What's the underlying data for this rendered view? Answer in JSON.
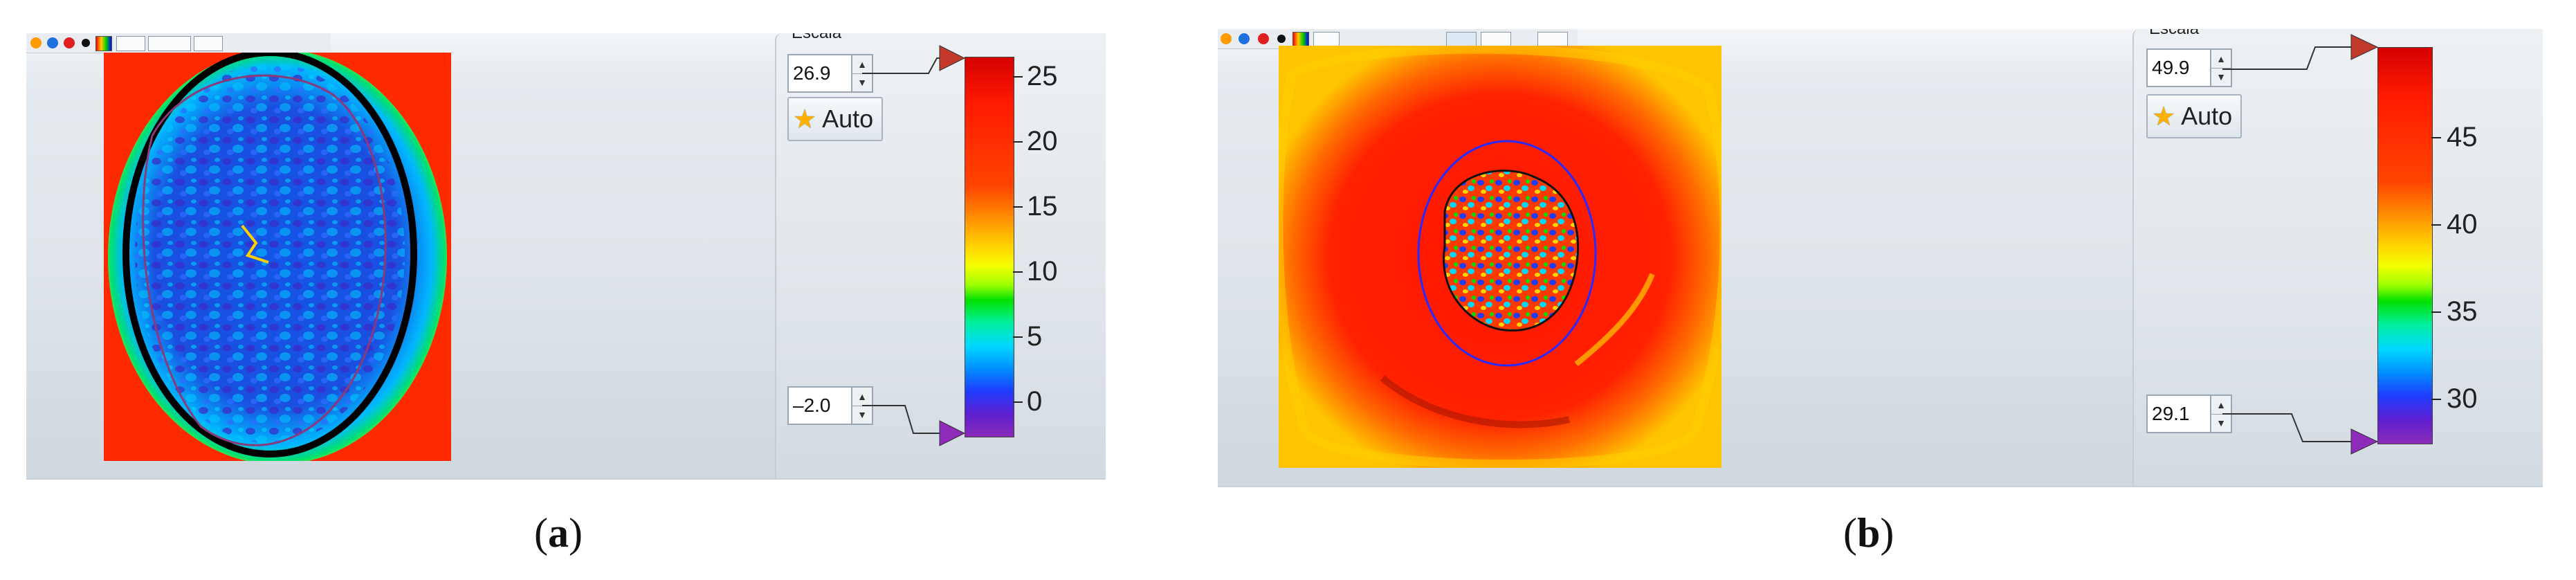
{
  "panels": [
    {
      "id": "a",
      "caption_open": "(",
      "caption_letter": "a",
      "caption_close": ")",
      "max_value": "26.9",
      "min_value": "–2.0",
      "auto_label": "Auto",
      "top_label": "Escala",
      "ticks": [
        "25",
        "20",
        "15",
        "10",
        "5",
        "0"
      ]
    },
    {
      "id": "b",
      "caption_open": "(",
      "caption_letter": "b",
      "caption_close": ")",
      "max_value": "49.9",
      "min_value": "29.1",
      "auto_label": "Auto",
      "top_label": "Escala",
      "ticks": [
        "45",
        "40",
        "35",
        "30"
      ]
    }
  ],
  "colors": {
    "marker_max": "#c0392b",
    "marker_min": "#8e2bb8",
    "auto_star": "#ffb000"
  },
  "icons": {
    "auto": "star-icon",
    "spinner": "up-down-arrows-icon"
  }
}
